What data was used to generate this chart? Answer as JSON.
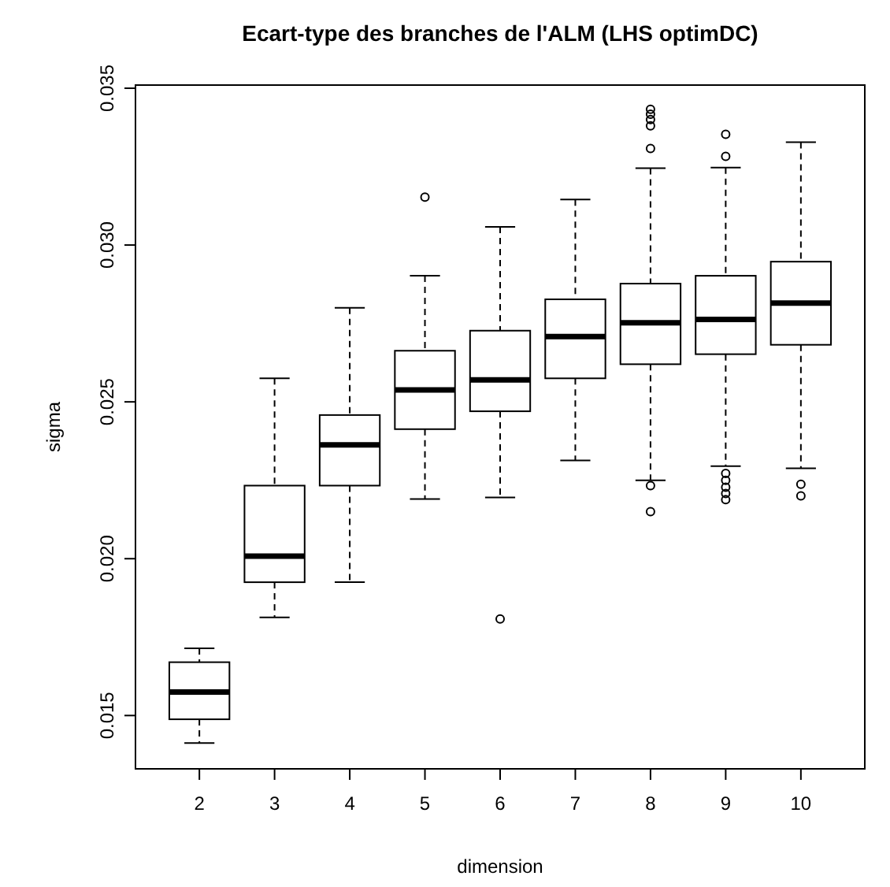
{
  "chart_data": {
    "type": "box",
    "title": "Ecart-type des branches de l'ALM (LHS optimDC)",
    "xlabel": "dimension",
    "ylabel": "sigma",
    "categories": [
      "2",
      "3",
      "4",
      "5",
      "6",
      "7",
      "8",
      "9",
      "10"
    ],
    "ylim": [
      0.0133,
      0.0351
    ],
    "yticks": [
      {
        "value": 0.015,
        "label": "0.015"
      },
      {
        "value": 0.02,
        "label": "0.020"
      },
      {
        "value": 0.025,
        "label": "0.025"
      },
      {
        "value": 0.03,
        "label": "0.030"
      },
      {
        "value": 0.035,
        "label": "0.035"
      }
    ],
    "grid": false,
    "boxes": [
      {
        "low": 0.01412,
        "q1": 0.01488,
        "median": 0.01575,
        "q3": 0.0167,
        "high": 0.01714
      },
      {
        "low": 0.01813,
        "q1": 0.01925,
        "median": 0.02008,
        "q3": 0.02233,
        "high": 0.02575
      },
      {
        "low": 0.01925,
        "q1": 0.02233,
        "median": 0.02363,
        "q3": 0.02458,
        "high": 0.028
      },
      {
        "low": 0.0219,
        "q1": 0.02413,
        "median": 0.02538,
        "q3": 0.02663,
        "high": 0.02902,
        "outliers": [
          0.03153
        ]
      },
      {
        "low": 0.02195,
        "q1": 0.0247,
        "median": 0.0257,
        "q3": 0.02727,
        "high": 0.03058,
        "outliers": [
          0.01808
        ]
      },
      {
        "low": 0.02313,
        "q1": 0.02575,
        "median": 0.02708,
        "q3": 0.02827,
        "high": 0.03145
      },
      {
        "low": 0.0225,
        "q1": 0.0262,
        "median": 0.02752,
        "q3": 0.02877,
        "high": 0.03245,
        "outliers": [
          0.03433,
          0.03417,
          0.034,
          0.0338,
          0.03308,
          0.02233,
          0.0215
        ]
      },
      {
        "low": 0.02295,
        "q1": 0.02652,
        "median": 0.02763,
        "q3": 0.02902,
        "high": 0.03247,
        "outliers": [
          0.03353,
          0.03283,
          0.02272,
          0.0225,
          0.02228,
          0.02208,
          0.02188
        ]
      },
      {
        "low": 0.02288,
        "q1": 0.02682,
        "median": 0.02815,
        "q3": 0.02947,
        "high": 0.03328,
        "outliers": [
          0.02237,
          0.022
        ]
      }
    ]
  }
}
